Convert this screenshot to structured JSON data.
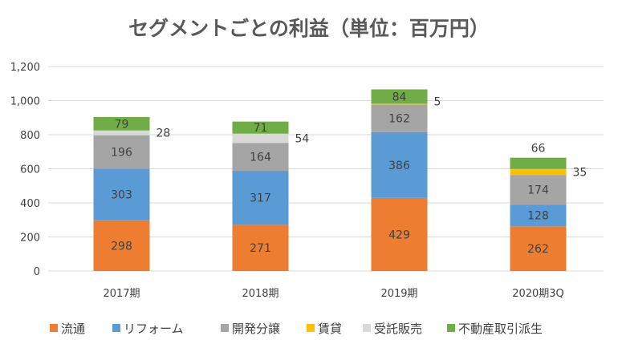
{
  "chart_data": {
    "type": "bar",
    "stacked": true,
    "title": "セグメントごとの利益（単位：百万円）",
    "xlabel": "",
    "ylabel": "",
    "ylim": [
      0,
      1200
    ],
    "yticks": [
      0,
      200,
      400,
      600,
      800,
      1000,
      1200
    ],
    "ytick_labels": [
      "0",
      "200",
      "400",
      "600",
      "800",
      "1,000",
      "1,200"
    ],
    "grid": true,
    "legend_position": "bottom",
    "categories": [
      "2017期",
      "2018期",
      "2019期",
      "2020期3Q"
    ],
    "series": [
      {
        "name": "流通",
        "color": "#ED7D31",
        "values": [
          298,
          271,
          429,
          262
        ]
      },
      {
        "name": "リフォーム",
        "color": "#5B9BD5",
        "values": [
          303,
          317,
          386,
          128
        ]
      },
      {
        "name": "開発分譲",
        "color": "#A5A5A5",
        "values": [
          196,
          164,
          162,
          174
        ]
      },
      {
        "name": "賃貸",
        "color": "#FFC000",
        "values": [
          null,
          null,
          5,
          35
        ]
      },
      {
        "name": "受託販売",
        "color": "#D9D9D9",
        "values": [
          28,
          54,
          null,
          null
        ]
      },
      {
        "name": "不動産取引派生",
        "color": "#70AD47",
        "values": [
          79,
          71,
          84,
          66
        ]
      }
    ]
  }
}
